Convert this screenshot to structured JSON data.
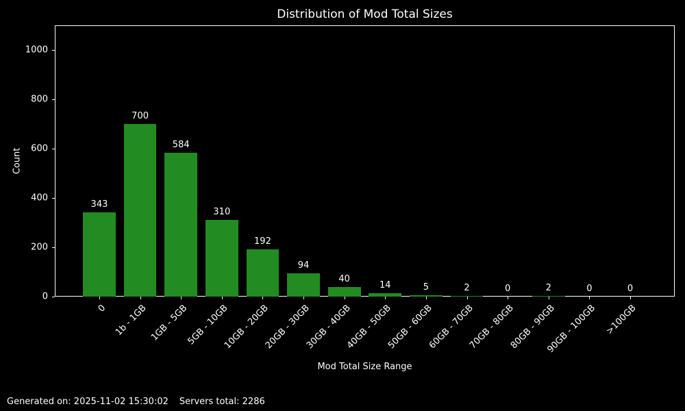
{
  "title": "Distribution of Mod Total Sizes",
  "footer": {
    "generated": "Generated on: 2025-11-02 15:30:02",
    "servers_total": "Servers total: 2286"
  },
  "chart_data": {
    "type": "bar",
    "title": "Distribution of Mod Total Sizes",
    "xlabel": "Mod Total Size Range",
    "ylabel": "Count",
    "categories": [
      "0",
      "1b - 1GB",
      "1GB - 5GB",
      "5GB - 10GB",
      "10GB - 20GB",
      "20GB - 30GB",
      "30GB - 40GB",
      "40GB - 50GB",
      "50GB - 60GB",
      "60GB - 70GB",
      "70GB - 80GB",
      "80GB - 90GB",
      "90GB - 100GB",
      ">100GB"
    ],
    "values": [
      343,
      700,
      584,
      310,
      192,
      94,
      40,
      14,
      5,
      2,
      0,
      2,
      0,
      0
    ],
    "yticks": [
      0,
      200,
      400,
      600,
      800,
      1000
    ],
    "ylim": [
      0,
      1100
    ],
    "bar_color": "#228B22",
    "background": "#000000",
    "text_color": "#ffffff",
    "grid": false,
    "legend": null,
    "x_tick_rotation_deg": 45
  }
}
